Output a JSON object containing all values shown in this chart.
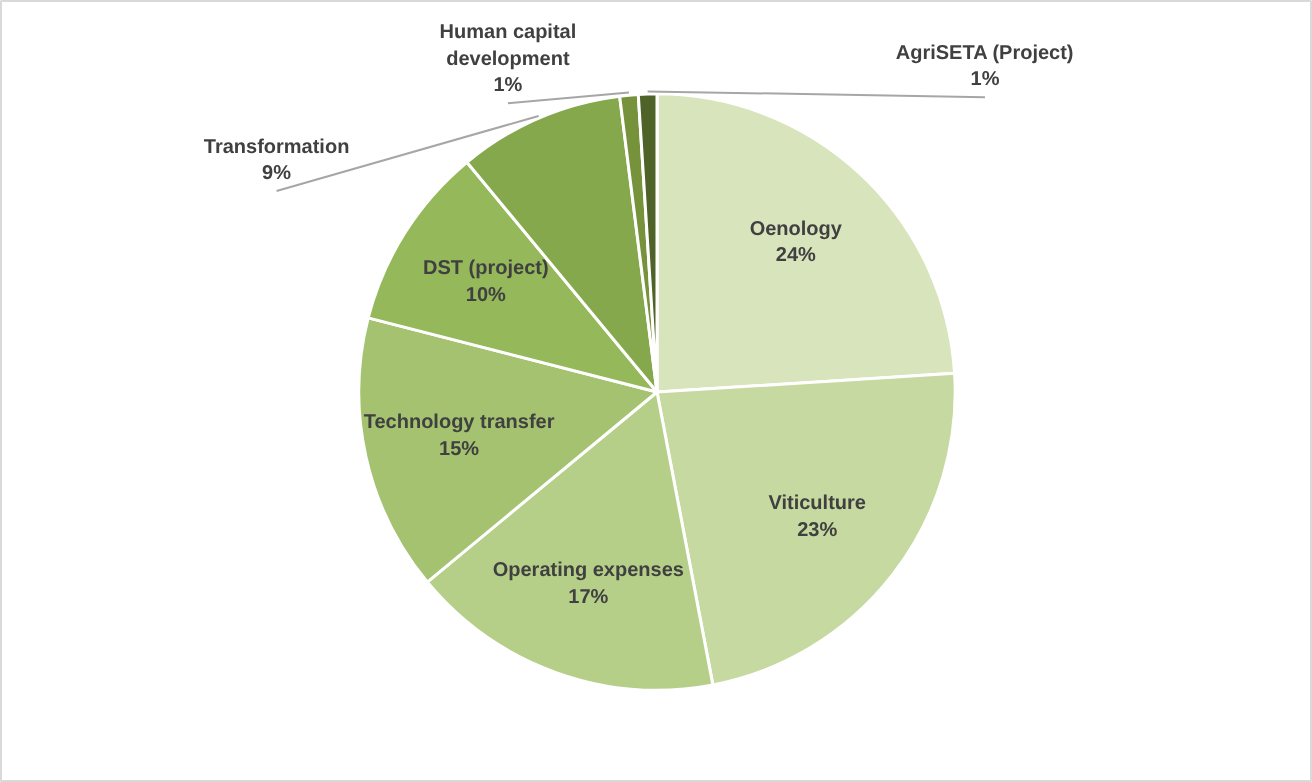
{
  "chart_data": {
    "type": "pie",
    "categories": [
      "Oenology",
      "Viticulture",
      "Operating expenses",
      "Technology transfer",
      "DST (project)",
      "Transformation",
      "Human capital development",
      "AgriSETA (Project)"
    ],
    "values": [
      24,
      23,
      17,
      15,
      10,
      9,
      1,
      1
    ],
    "colors": [
      "#d8e4bc",
      "#c6d9a0",
      "#b5cf88",
      "#a4c26f",
      "#94b85a",
      "#86a84c",
      "#76933c",
      "#4f6228"
    ],
    "data_labels": false,
    "value_labels": [
      "24%",
      "23%",
      "17%",
      "15%",
      "10%",
      "9%",
      "1%",
      "1%"
    ]
  }
}
